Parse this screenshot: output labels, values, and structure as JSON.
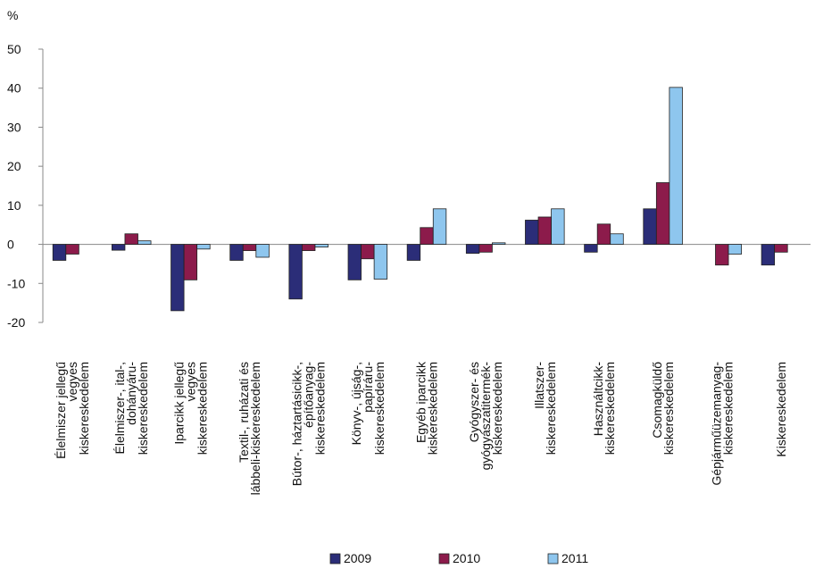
{
  "chart_data": {
    "type": "bar",
    "y_label": "%",
    "categories": [
      [
        "Élelmiszer jellegű",
        "vegyes",
        "kiskereskedelem"
      ],
      [
        "Élelmiszer-, ital-,",
        "dohányáru-",
        "kiskereskedelem"
      ],
      [
        "Iparcikk jellegű",
        "vegyes",
        "kiskereskedelem"
      ],
      [
        "Textil-, ruházati és",
        "lábbeli-kiskereskedelem"
      ],
      [
        "Bútor-, háztartásicikk-,",
        "építőanyag-",
        "kiskereskedelem"
      ],
      [
        "Könyv-, újság-,",
        "papíráru-",
        "kiskereskedelem"
      ],
      [
        "Egyéb iparcikk",
        "kiskereskedelem"
      ],
      [
        "Gyógyszer- és",
        "gyógyászatitermék-",
        "kiskereskedelem"
      ],
      [
        "Illatszer-",
        "kiskereskedelem"
      ],
      [
        "Használtcikk-",
        "kiskereskedelem"
      ],
      [
        "Csomagküldő",
        "kiskereskedelem"
      ],
      [
        "Gépjárműüzemanyag-",
        "kiskereskedelem"
      ],
      [
        "Kiskereskedelem"
      ]
    ],
    "series": [
      {
        "name": "2009",
        "color": "#2b2d78",
        "values": [
          -4.1,
          -1.5,
          -17,
          -4.1,
          -14,
          -9.1,
          -4.1,
          -2.3,
          6.2,
          -2,
          9.1,
          null,
          -5.3
        ]
      },
      {
        "name": "2010",
        "color": "#8c1b4b",
        "values": [
          -2.5,
          2.7,
          -9.1,
          -1.6,
          -1.6,
          -3.7,
          4.3,
          -2,
          7,
          5.2,
          15.8,
          -5.3,
          -2
        ]
      },
      {
        "name": "2011",
        "color": "#8ec6ee",
        "values": [
          null,
          0.9,
          -1.2,
          -3.3,
          -0.7,
          -8.9,
          9.1,
          0.4,
          9.1,
          2.7,
          40.2,
          -2.5,
          null
        ]
      }
    ],
    "ylim": [
      -20,
      50
    ],
    "yticks": [
      -20,
      -10,
      0,
      10,
      20,
      30,
      40,
      50
    ],
    "grid": false,
    "legend": "bottom"
  }
}
